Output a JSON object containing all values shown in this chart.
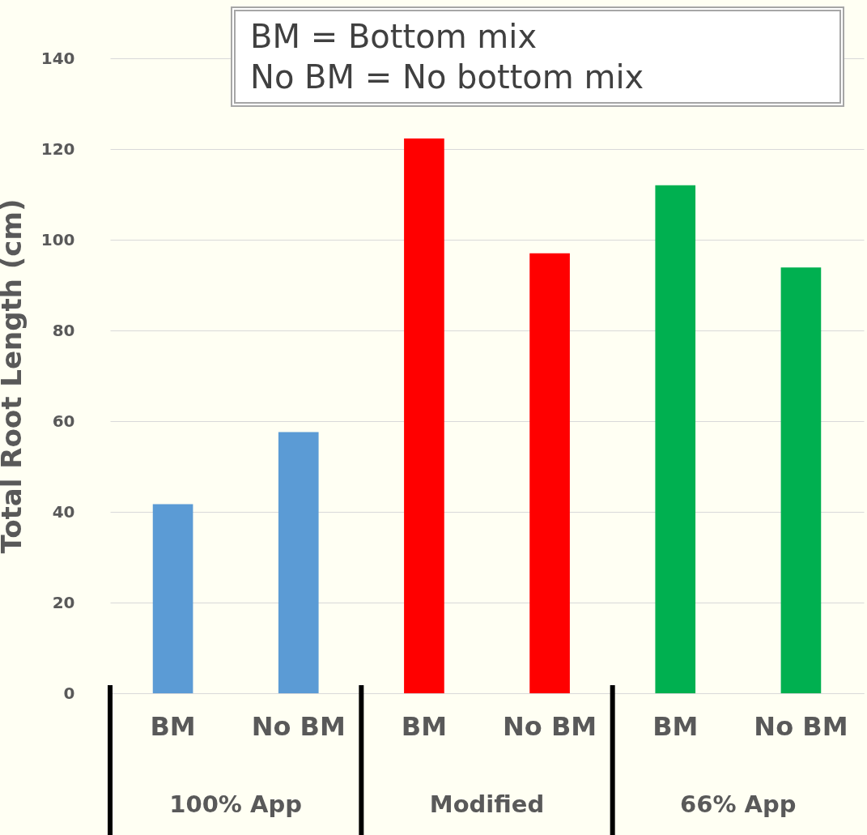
{
  "chart_data": {
    "type": "bar",
    "ylabel": "Total Root Length (cm)",
    "categories": [
      "BM",
      "No BM",
      "BM",
      "No BM",
      "BM",
      "No BM"
    ],
    "values": [
      41.7,
      57.6,
      122.3,
      97.0,
      112.0,
      93.9
    ],
    "colors": [
      "#5b9bd5",
      "#5b9bd5",
      "#ff0000",
      "#ff0000",
      "#00b050",
      "#00b050"
    ],
    "ylim": [
      0,
      140
    ],
    "yticks": [
      0,
      20,
      40,
      60,
      80,
      100,
      120,
      140
    ],
    "grid": "y",
    "annotations": [
      "BM = Bottom mix",
      "No BM = No bottom mix",
      "100% App",
      "Modified",
      "66% App"
    ]
  }
}
